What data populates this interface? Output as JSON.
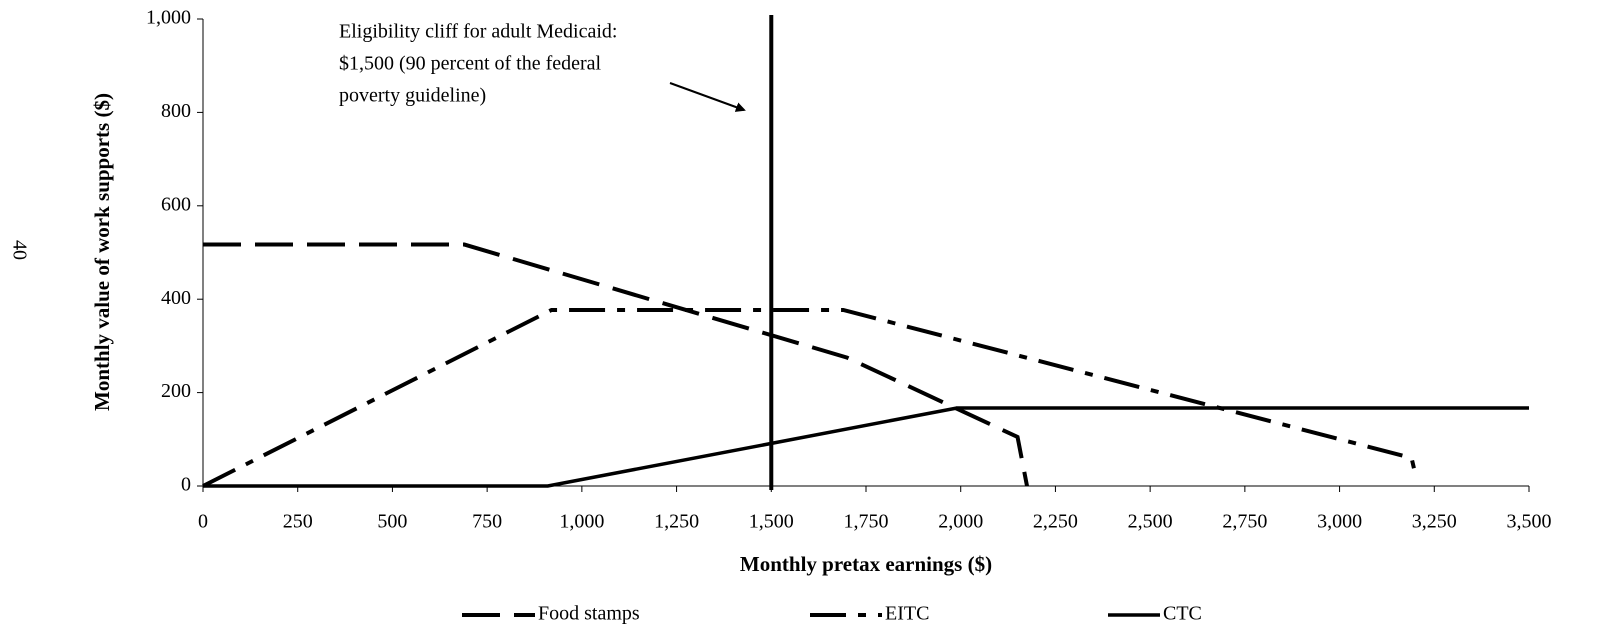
{
  "page_number": "40",
  "chart_data": {
    "type": "line",
    "xlabel": "Monthly pretax earnings ($)",
    "ylabel": "Monthly value of work supports ($)",
    "xlim": [
      0,
      3500
    ],
    "ylim": [
      0,
      1000
    ],
    "xticks": [
      0,
      250,
      500,
      750,
      {
        "value": 1000,
        "label": "1,000"
      },
      {
        "value": 1250,
        "label": "1,250"
      },
      {
        "value": 1500,
        "label": "1,500"
      },
      {
        "value": 1750,
        "label": "1,750"
      },
      {
        "value": 2000,
        "label": "2,000"
      },
      {
        "value": 2250,
        "label": "2,250"
      },
      {
        "value": 2500,
        "label": "2,500"
      },
      {
        "value": 2750,
        "label": "2,750"
      },
      {
        "value": 3000,
        "label": "3,000"
      },
      {
        "value": 3250,
        "label": "3,250"
      },
      {
        "value": 3500,
        "label": "3,500"
      }
    ],
    "yticks": [
      0,
      200,
      400,
      600,
      800,
      {
        "value": 1000,
        "label": "1,000"
      }
    ],
    "legend": "bottom",
    "series": [
      {
        "name": "Food stamps",
        "color": "#000000",
        "dash": "dashed",
        "x": [
          0,
          690,
          1700,
          2150,
          2175
        ],
        "values": [
          517,
          517,
          275,
          105,
          0
        ]
      },
      {
        "name": "EITC",
        "color": "#000000",
        "dash": "dash-dot",
        "x": [
          0,
          920,
          1690,
          3190,
          3200
        ],
        "values": [
          0,
          377,
          377,
          60,
          25
        ]
      },
      {
        "name": "CTC",
        "color": "#000000",
        "dash": "solid",
        "x": [
          0,
          910,
          1990,
          3500
        ],
        "values": [
          0,
          0,
          167,
          167
        ]
      }
    ],
    "annotation": {
      "lines": [
        "Eligibility cliff for adult Medicaid:",
        "$1,500 (90 percent of the federal",
        "poverty guideline)"
      ],
      "x": 1500
    }
  }
}
